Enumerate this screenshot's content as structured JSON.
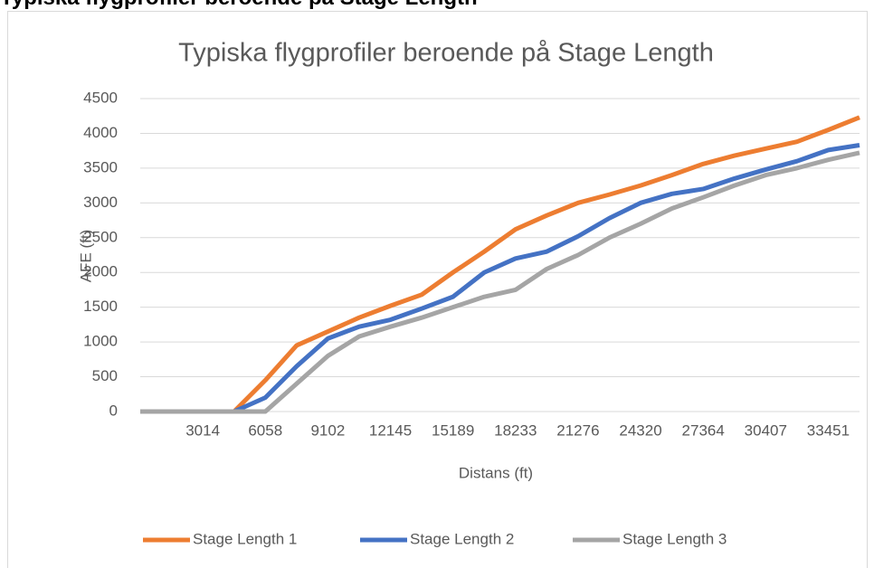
{
  "caption": "Typiska flygprofiler beroende på Stage Length",
  "chart_data": {
    "type": "line",
    "title": "Typiska flygprofiler beroende på Stage Length",
    "x_label": "Distans (ft)",
    "y_label": "AFE (ft)",
    "categories": [
      null,
      null,
      "3014",
      null,
      "6058",
      null,
      "9102",
      null,
      "12145",
      null,
      "15189",
      null,
      "18233",
      null,
      "21276",
      null,
      "24320",
      null,
      "27364",
      null,
      "30407",
      null,
      "33451",
      null
    ],
    "series": [
      {
        "name": "Stage Length 1",
        "color": "#ed7d31",
        "values": [
          0,
          0,
          0,
          0,
          450,
          950,
          1150,
          1350,
          1520,
          1680,
          2000,
          2300,
          2620,
          2820,
          3000,
          3120,
          3250,
          3400,
          3560,
          3680,
          3780,
          3880,
          4050,
          4230
        ]
      },
      {
        "name": "Stage Length 2",
        "color": "#4472c4",
        "values": [
          0,
          0,
          0,
          0,
          200,
          650,
          1050,
          1220,
          1320,
          1480,
          1650,
          2000,
          2200,
          2300,
          2520,
          2780,
          3000,
          3130,
          3200,
          3350,
          3480,
          3600,
          3760,
          3830
        ]
      },
      {
        "name": "Stage Length 3",
        "color": "#a5a5a5",
        "values": [
          0,
          0,
          0,
          0,
          0,
          400,
          800,
          1080,
          1220,
          1350,
          1500,
          1650,
          1750,
          2050,
          2250,
          2500,
          2700,
          2920,
          3080,
          3250,
          3400,
          3500,
          3620,
          3720
        ]
      }
    ],
    "ylim": [
      0,
      4500
    ],
    "yticks": [
      0,
      500,
      1000,
      1500,
      2000,
      2500,
      3000,
      3500,
      4000,
      4500
    ],
    "grid": true,
    "legend": "bottom"
  }
}
